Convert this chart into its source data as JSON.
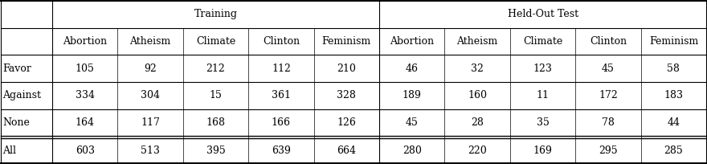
{
  "col_groups": [
    {
      "label": "Training",
      "span": 5
    },
    {
      "label": "Held-Out Test",
      "span": 5
    }
  ],
  "sub_columns": [
    "Abortion",
    "Atheism",
    "Climate",
    "Clinton",
    "Feminism",
    "Abortion",
    "Atheism",
    "Climate",
    "Clinton",
    "Feminism"
  ],
  "row_labels": [
    "Favor",
    "Against",
    "None",
    "All"
  ],
  "data": [
    [
      105,
      92,
      212,
      112,
      210,
      46,
      32,
      123,
      45,
      58
    ],
    [
      334,
      304,
      15,
      361,
      328,
      189,
      160,
      11,
      172,
      183
    ],
    [
      164,
      117,
      168,
      166,
      126,
      45,
      28,
      35,
      78,
      44
    ],
    [
      603,
      513,
      395,
      639,
      664,
      280,
      220,
      169,
      295,
      285
    ]
  ],
  "bg_color": "#ffffff",
  "font_size": 9.0
}
